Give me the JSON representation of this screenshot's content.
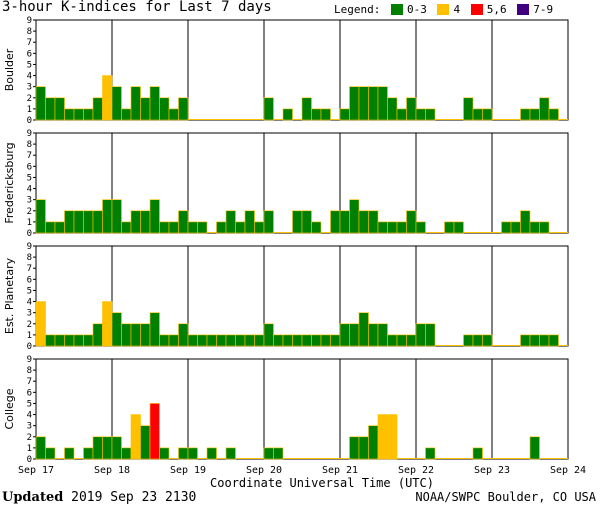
{
  "title": "3-hour K-indices for Last 7 days",
  "legend": {
    "label": "Legend:",
    "items": [
      {
        "text": "0-3",
        "color": "#008000"
      },
      {
        "text": "4",
        "color": "#ffc000"
      },
      {
        "text": "5,6",
        "color": "#ff0000"
      },
      {
        "text": "7-9",
        "color": "#400080"
      }
    ]
  },
  "footer": {
    "updated_label": "Updated",
    "updated_time": "2019 Sep 23 2130",
    "credit": "NOAA/SWPC Boulder, CO USA"
  },
  "chart_data": {
    "type": "bar",
    "xlabel": "Coordinate Universal Time (UTC)",
    "x_ticks": [
      "Sep 17",
      "Sep 18",
      "Sep 19",
      "Sep 20",
      "Sep 21",
      "Sep 22",
      "Sep 23",
      "Sep 24"
    ],
    "ylim": [
      0,
      9
    ],
    "y_ticks": [
      0,
      1,
      2,
      3,
      4,
      5,
      6,
      7,
      8,
      9
    ],
    "bins_per_day": 8,
    "color_scale": {
      "0-3": "#008000",
      "4": "#ffc000",
      "5,6": "#ff0000",
      "7-9": "#400080"
    },
    "panels": [
      {
        "name": "Boulder",
        "values": [
          3,
          2,
          2,
          1,
          1,
          1,
          2,
          4,
          3,
          1,
          3,
          2,
          3,
          2,
          1,
          2,
          0,
          0,
          0,
          0,
          0,
          0,
          0,
          0,
          2,
          0,
          1,
          0,
          2,
          1,
          1,
          0,
          1,
          3,
          3,
          3,
          3,
          2,
          1,
          2,
          1,
          1,
          0,
          0,
          0,
          2,
          1,
          1,
          0,
          0,
          0,
          1,
          1,
          2,
          1,
          0
        ]
      },
      {
        "name": "Fredericksburg",
        "values": [
          3,
          1,
          1,
          2,
          2,
          2,
          2,
          3,
          3,
          1,
          2,
          2,
          3,
          1,
          1,
          2,
          1,
          1,
          0,
          1,
          2,
          1,
          2,
          1,
          2,
          0,
          0,
          2,
          2,
          1,
          0,
          2,
          2,
          3,
          2,
          2,
          1,
          1,
          1,
          2,
          1,
          0,
          0,
          1,
          1,
          0,
          0,
          0,
          0,
          1,
          1,
          2,
          1,
          1,
          0,
          0
        ]
      },
      {
        "name": "Est. Planetary",
        "values": [
          4,
          1,
          1,
          1,
          1,
          1,
          2,
          4,
          3,
          2,
          2,
          2,
          3,
          1,
          1,
          2,
          1,
          1,
          1,
          1,
          1,
          1,
          1,
          1,
          2,
          1,
          1,
          1,
          1,
          1,
          1,
          1,
          2,
          2,
          3,
          2,
          2,
          1,
          1,
          1,
          2,
          2,
          0,
          0,
          0,
          1,
          1,
          1,
          0,
          0,
          0,
          1,
          1,
          1,
          1,
          0
        ]
      },
      {
        "name": "College",
        "values": [
          2,
          1,
          0,
          1,
          0,
          1,
          2,
          2,
          2,
          1,
          4,
          3,
          5,
          1,
          0,
          1,
          1,
          0,
          1,
          0,
          1,
          0,
          0,
          0,
          1,
          1,
          0,
          0,
          0,
          0,
          0,
          0,
          0,
          2,
          2,
          3,
          4,
          4,
          0,
          0,
          0,
          1,
          0,
          0,
          0,
          0,
          1,
          0,
          0,
          0,
          0,
          0,
          2,
          0,
          0,
          0
        ]
      }
    ]
  }
}
